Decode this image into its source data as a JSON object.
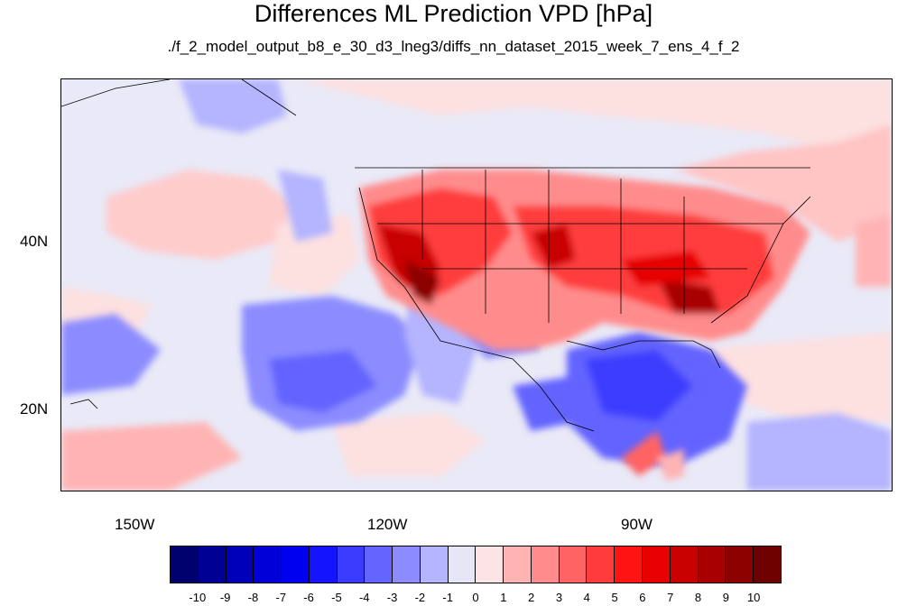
{
  "title": "Differences ML Prediction VPD [hPa]",
  "subtitle": "./f_2_model_output_b8_e_30_d3_lneg3/diffs_nn_dataset_2015_week_7_ens_4_f_2",
  "map": {
    "lat_labels": [
      "40N",
      "20N"
    ],
    "lon_labels": [
      "150W",
      "120W",
      "90W"
    ]
  },
  "colorbar": {
    "labels": [
      "-10",
      "-9",
      "-8",
      "-7",
      "-6",
      "-5",
      "-4",
      "-3",
      "-2",
      "-1",
      "0",
      "1",
      "2",
      "3",
      "4",
      "5",
      "6",
      "7",
      "8",
      "9",
      "10"
    ],
    "colors": [
      "#00006e",
      "#000095",
      "#0000b8",
      "#0000d8",
      "#0000f0",
      "#1414ff",
      "#3c3cff",
      "#6464ff",
      "#8c8cff",
      "#b4b4ff",
      "#e6e6f8",
      "#fde4e4",
      "#ffb4b4",
      "#ff8c8c",
      "#ff6464",
      "#ff3c3c",
      "#ff1414",
      "#e60000",
      "#c80000",
      "#a80000",
      "#8c0000",
      "#6e0000"
    ]
  }
}
